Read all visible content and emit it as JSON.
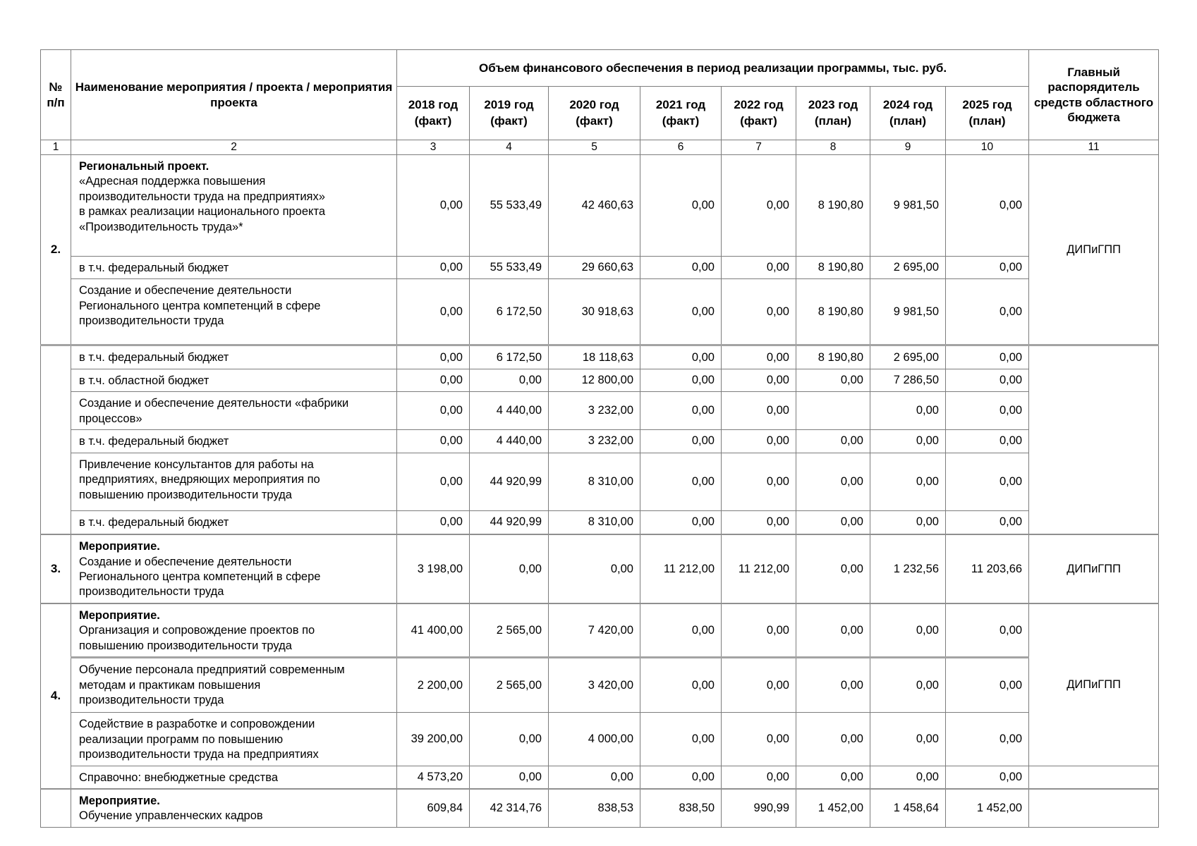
{
  "table": {
    "header": {
      "num": "№ п/п",
      "name": "Наименование мероприятия / проекта / мероприятия проекта",
      "finance_group": "Объем финансового обеспечения в период реализации программы, тыс. руб.",
      "years": [
        {
          "y": "2018 год",
          "k": "(факт)"
        },
        {
          "y": "2019 год",
          "k": "(факт)"
        },
        {
          "y": "2020 год",
          "k": "(факт)"
        },
        {
          "y": "2021 год",
          "k": "(факт)"
        },
        {
          "y": "2022 год",
          "k": "(факт)"
        },
        {
          "y": "2023 год",
          "k": "(план)"
        },
        {
          "y": "2024 год",
          "k": "(план)"
        },
        {
          "y": "2025 год",
          "k": "(план)"
        }
      ],
      "grbs": "Главный распорядитель средств областного бюджета",
      "col_indexes": [
        "1",
        "2",
        "3",
        "4",
        "5",
        "6",
        "7",
        "8",
        "9",
        "10",
        "11"
      ]
    },
    "num_cells": [
      {
        "label": "2.",
        "span": 3
      },
      {
        "label": "",
        "span": 6
      },
      {
        "label": "3.",
        "span": 1
      },
      {
        "label": "4.",
        "span": 4
      },
      {
        "label": "",
        "span": 1
      }
    ],
    "grbs_cells": [
      {
        "label": "ДИПиГПП",
        "span": 3
      },
      {
        "label": "",
        "span": 6
      },
      {
        "label": "ДИПиГПП",
        "span": 1
      },
      {
        "label": "ДИПиГПП",
        "span": 3
      },
      {
        "label": "",
        "span": 1
      },
      {
        "label": "",
        "span": 1
      }
    ],
    "rows": [
      {
        "title": "Региональный проект.",
        "name": "«Адресная поддержка повышения\nпроизводительности труда на предприятиях»\nв рамках реализации национального проекта\n«Производительность труда»*",
        "values": [
          "0,00",
          "55 533,49",
          "42 460,63",
          "0,00",
          "0,00",
          "8 190,80",
          "9 981,50",
          "0,00"
        ]
      },
      {
        "title": "",
        "name": "в т.ч. федеральный бюджет",
        "values": [
          "0,00",
          "55 533,49",
          "29 660,63",
          "0,00",
          "0,00",
          "8 190,80",
          "2 695,00",
          "0,00"
        ]
      },
      {
        "title": "",
        "name": "Создание и обеспечение деятельности\nРегионального центра компетенций в сфере\nпроизводительности труда",
        "values": [
          "0,00",
          "6 172,50",
          "30 918,63",
          "0,00",
          "0,00",
          "8 190,80",
          "9 981,50",
          "0,00"
        ]
      },
      {
        "title": "",
        "name": "в т.ч. федеральный бюджет",
        "values": [
          "0,00",
          "6 172,50",
          "18 118,63",
          "0,00",
          "0,00",
          "8 190,80",
          "2 695,00",
          "0,00"
        ]
      },
      {
        "title": "",
        "name": "в т.ч. областной бюджет",
        "values": [
          "0,00",
          "0,00",
          "12 800,00",
          "0,00",
          "0,00",
          "0,00",
          "7 286,50",
          "0,00"
        ]
      },
      {
        "title": "",
        "name": "Создание и обеспечение деятельности «фабрики\nпроцессов»",
        "values": [
          "0,00",
          "4 440,00",
          "3 232,00",
          "0,00",
          "0,00",
          "",
          "0,00",
          "0,00"
        ]
      },
      {
        "title": "",
        "name": "в т.ч. федеральный бюджет",
        "values": [
          "0,00",
          "4 440,00",
          "3 232,00",
          "0,00",
          "0,00",
          "0,00",
          "0,00",
          "0,00"
        ]
      },
      {
        "title": "",
        "name": "Привлечение консультантов для работы на\nпредприятиях, внедряющих мероприятия по\nповышению производительности труда",
        "values": [
          "0,00",
          "44 920,99",
          "8 310,00",
          "0,00",
          "0,00",
          "0,00",
          "0,00",
          "0,00"
        ]
      },
      {
        "title": "",
        "name": "в т.ч. федеральный бюджет",
        "values": [
          "0,00",
          "44 920,99",
          "8 310,00",
          "0,00",
          "0,00",
          "0,00",
          "0,00",
          "0,00"
        ]
      },
      {
        "title": "Мероприятие.",
        "name": "Создание и обеспечение деятельности\nРегионального центра компетенций в сфере\nпроизводительности труда",
        "values": [
          "3 198,00",
          "0,00",
          "0,00",
          "11 212,00",
          "11 212,00",
          "0,00",
          "1 232,56",
          "11 203,66"
        ]
      },
      {
        "title": "Мероприятие.",
        "name": "Организация и сопровождение проектов по\nповышению производительности труда",
        "values": [
          "41 400,00",
          "2 565,00",
          "7 420,00",
          "0,00",
          "0,00",
          "0,00",
          "0,00",
          "0,00"
        ]
      },
      {
        "title": "",
        "name": "Обучение персонала предприятий современным\nметодам и практикам повышения\nпроизводительности труда",
        "values": [
          "2 200,00",
          "2 565,00",
          "3 420,00",
          "0,00",
          "0,00",
          "0,00",
          "0,00",
          "0,00"
        ]
      },
      {
        "title": "",
        "name": "Содействие в разработке и сопровождении\nреализации программ по повышению\nпроизводительности труда на предприятиях",
        "values": [
          "39 200,00",
          "0,00",
          "4 000,00",
          "0,00",
          "0,00",
          "0,00",
          "0,00",
          "0,00"
        ]
      },
      {
        "title": "",
        "name": "Справочно: внебюджетные средства",
        "values": [
          "4 573,20",
          "0,00",
          "0,00",
          "0,00",
          "0,00",
          "0,00",
          "0,00",
          "0,00"
        ]
      },
      {
        "title": "Мероприятие.",
        "name": "Обучение управленческих кадров",
        "values": [
          "609,84",
          "42 314,76",
          "838,53",
          "838,50",
          "990,99",
          "1 452,00",
          "1 458,64",
          "1 452,00"
        ]
      }
    ]
  }
}
